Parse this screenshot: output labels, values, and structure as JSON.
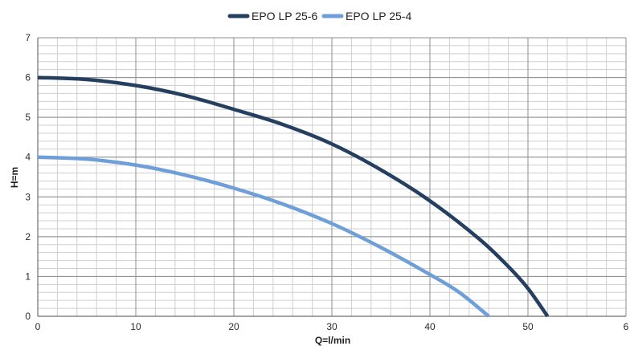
{
  "chart_data": {
    "type": "line",
    "title": "",
    "xlabel": "Q=l/min",
    "ylabel": "H=m",
    "xlim": [
      0,
      60
    ],
    "ylim": [
      0,
      7
    ],
    "x_ticks": [
      "0",
      "10",
      "20",
      "30",
      "40",
      "50",
      "6"
    ],
    "y_ticks": [
      "0",
      "1",
      "2",
      "3",
      "4",
      "5",
      "6",
      "7"
    ],
    "grid": true,
    "legend_position": "top-center",
    "series": [
      {
        "name": "EPO LP 25-6",
        "color": "#243f60",
        "points": [
          [
            0,
            6.0
          ],
          [
            5,
            5.95
          ],
          [
            10,
            5.8
          ],
          [
            15,
            5.55
          ],
          [
            20,
            5.2
          ],
          [
            25,
            4.82
          ],
          [
            30,
            4.33
          ],
          [
            35,
            3.68
          ],
          [
            40,
            2.9
          ],
          [
            45,
            1.95
          ],
          [
            48,
            1.25
          ],
          [
            50,
            0.7
          ],
          [
            52,
            0.0
          ]
        ]
      },
      {
        "name": "EPO LP 25-4",
        "color": "#6f9fd8",
        "points": [
          [
            0,
            4.0
          ],
          [
            5,
            3.95
          ],
          [
            10,
            3.8
          ],
          [
            15,
            3.55
          ],
          [
            20,
            3.22
          ],
          [
            25,
            2.82
          ],
          [
            30,
            2.33
          ],
          [
            35,
            1.73
          ],
          [
            40,
            1.05
          ],
          [
            43,
            0.6
          ],
          [
            46,
            0.0
          ]
        ]
      }
    ]
  }
}
